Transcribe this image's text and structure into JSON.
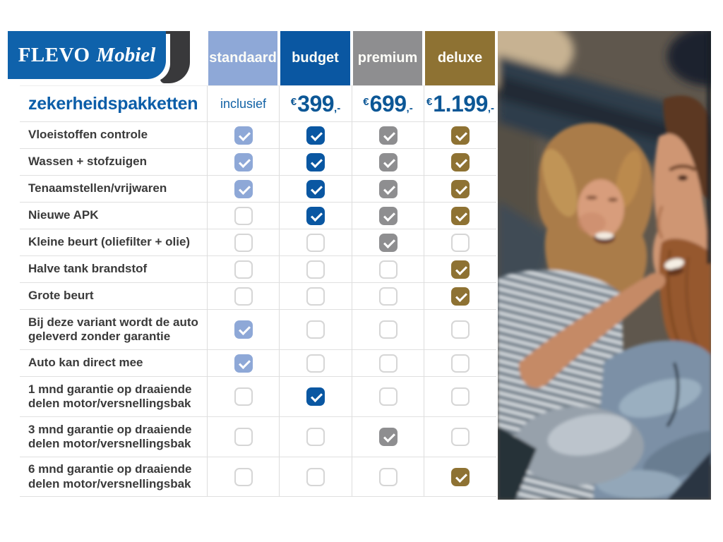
{
  "logo": {
    "brand_primary": "FLEVO",
    "brand_secondary": "Mobiel",
    "plate_color": "#0f62ab",
    "swoosh_color": "#39393b"
  },
  "title": "zekerheidspakketten",
  "packages": [
    {
      "id": "standaard",
      "label": "standaard",
      "color": "#8ea8d7",
      "price_text": "inclusief"
    },
    {
      "id": "budget",
      "label": "budget",
      "color": "#0a57a2",
      "price_currency": "€",
      "price_amount": "399",
      "price_decimal": ",-"
    },
    {
      "id": "premium",
      "label": "premium",
      "color": "#8e8e90",
      "price_currency": "€",
      "price_amount": "699",
      "price_decimal": ",-"
    },
    {
      "id": "deluxe",
      "label": "deluxe",
      "color": "#8e7233",
      "price_currency": "€",
      "price_amount": "1.199",
      "price_decimal": ",-"
    }
  ],
  "features": [
    {
      "label": "Vloeistoffen controle",
      "included": [
        true,
        true,
        true,
        true
      ]
    },
    {
      "label": "Wassen + stofzuigen",
      "included": [
        true,
        true,
        true,
        true
      ]
    },
    {
      "label": "Tenaamstellen/vrijwaren",
      "included": [
        true,
        true,
        true,
        true
      ]
    },
    {
      "label": "Nieuwe APK",
      "included": [
        false,
        true,
        true,
        true
      ]
    },
    {
      "label": "Kleine beurt (oliefilter + olie)",
      "included": [
        false,
        false,
        true,
        false
      ]
    },
    {
      "label": "Halve tank brandstof",
      "included": [
        false,
        false,
        false,
        true
      ]
    },
    {
      "label": "Grote beurt",
      "included": [
        false,
        false,
        false,
        true
      ]
    },
    {
      "label": "Bij deze variant wordt de auto\ngeleverd zonder garantie",
      "included": [
        true,
        false,
        false,
        false
      ],
      "two_line": true
    },
    {
      "label": "Auto kan direct mee",
      "included": [
        true,
        false,
        false,
        false
      ]
    },
    {
      "label": "1 mnd garantie op draaiende\ndelen motor/versnellingsbak",
      "included": [
        false,
        true,
        false,
        false
      ],
      "two_line": true
    },
    {
      "label": "3 mnd garantie op draaiende\ndelen motor/versnellingsbak",
      "included": [
        false,
        false,
        true,
        false
      ],
      "two_line": true
    },
    {
      "label": "6 mnd garantie op draaiende\ndelen motor/versnellingsbak",
      "included": [
        false,
        false,
        false,
        true
      ],
      "two_line": true
    }
  ],
  "chart_data": {
    "type": "table",
    "title": "zekerheidspakketten",
    "columns": [
      "standaard",
      "budget",
      "premium",
      "deluxe"
    ],
    "column_colors": [
      "#8ea8d7",
      "#0a57a2",
      "#8e8e90",
      "#8e7233"
    ],
    "prices": [
      "inclusief",
      "€399,-",
      "€699,-",
      "€1.199,-"
    ],
    "rows": [
      "Vloeistoffen controle",
      "Wassen + stofzuigen",
      "Tenaamstellen/vrijwaren",
      "Nieuwe APK",
      "Kleine beurt (oliefilter + olie)",
      "Halve tank brandstof",
      "Grote beurt",
      "Bij deze variant wordt de auto geleverd zonder garantie",
      "Auto kan direct mee",
      "1 mnd garantie op draaiende delen motor/versnellingsbak",
      "3 mnd garantie op draaiende delen motor/versnellingsbak",
      "6 mnd garantie op draaiende delen motor/versnellingsbak"
    ],
    "values": [
      [
        1,
        1,
        1,
        1
      ],
      [
        1,
        1,
        1,
        1
      ],
      [
        1,
        1,
        1,
        1
      ],
      [
        0,
        1,
        1,
        1
      ],
      [
        0,
        0,
        1,
        0
      ],
      [
        0,
        0,
        0,
        1
      ],
      [
        0,
        0,
        0,
        1
      ],
      [
        1,
        0,
        0,
        0
      ],
      [
        1,
        0,
        0,
        0
      ],
      [
        0,
        1,
        0,
        0
      ],
      [
        0,
        0,
        1,
        0
      ],
      [
        0,
        0,
        0,
        1
      ]
    ]
  },
  "photo": {
    "description": "smiling couple in a car, woman touching man's beard"
  }
}
